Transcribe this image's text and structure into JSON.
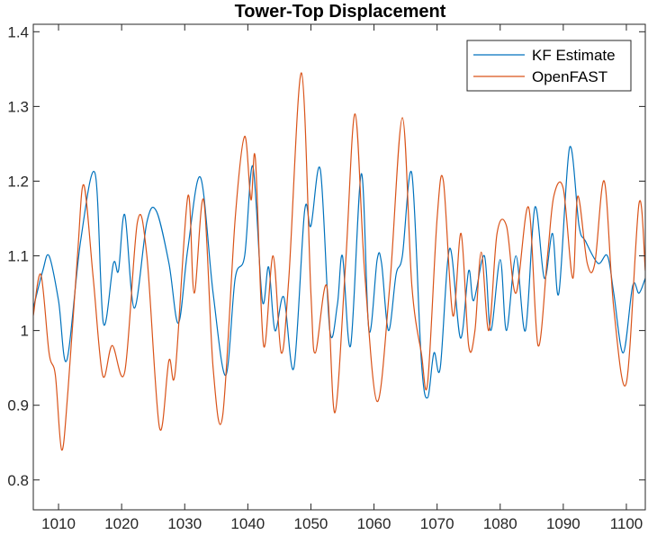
{
  "chart_data": {
    "type": "line",
    "title": "Tower-Top Displacement",
    "xlabel": "",
    "ylabel": "",
    "xlim": [
      1006,
      1103
    ],
    "ylim": [
      0.76,
      1.41
    ],
    "xticks": [
      1010,
      1020,
      1030,
      1040,
      1050,
      1060,
      1070,
      1080,
      1090,
      1100
    ],
    "yticks": [
      0.8,
      0.9,
      1,
      1.1,
      1.2,
      1.3,
      1.4
    ],
    "ytick_labels": [
      "0.8",
      "0.9",
      "1",
      "1.1",
      "1.2",
      "1.3",
      "1.4"
    ],
    "grid": false,
    "legend_position": "top-right",
    "series": [
      {
        "name": "KF Estimate",
        "color": "#0072BD",
        "points": [
          [
            1006,
            1.03
          ],
          [
            1007.5,
            1.08
          ],
          [
            1008.5,
            1.1
          ],
          [
            1010,
            1.04
          ],
          [
            1011.3,
            0.96
          ],
          [
            1013.5,
            1.12
          ],
          [
            1015.8,
            1.21
          ],
          [
            1017.1,
            1.01
          ],
          [
            1018.7,
            1.09
          ],
          [
            1019.5,
            1.08
          ],
          [
            1020.5,
            1.155
          ],
          [
            1022,
            1.03
          ],
          [
            1024,
            1.145
          ],
          [
            1025.5,
            1.16
          ],
          [
            1027.5,
            1.09
          ],
          [
            1029,
            1.01
          ],
          [
            1030.5,
            1.11
          ],
          [
            1032.5,
            1.205
          ],
          [
            1034.5,
            1.05
          ],
          [
            1036.5,
            0.94
          ],
          [
            1038,
            1.07
          ],
          [
            1039.5,
            1.1
          ],
          [
            1040.8,
            1.22
          ],
          [
            1042.3,
            1.04
          ],
          [
            1043.3,
            1.085
          ],
          [
            1044.3,
            1.0
          ],
          [
            1045.7,
            1.045
          ],
          [
            1047.3,
            0.95
          ],
          [
            1049,
            1.16
          ],
          [
            1050,
            1.14
          ],
          [
            1051.5,
            1.215
          ],
          [
            1053,
            1.0
          ],
          [
            1054.2,
            1.035
          ],
          [
            1055,
            1.1
          ],
          [
            1056.3,
            0.98
          ],
          [
            1058,
            1.21
          ],
          [
            1059.2,
            1.0
          ],
          [
            1060.5,
            1.095
          ],
          [
            1061.2,
            1.09
          ],
          [
            1062.3,
            1.0
          ],
          [
            1063.5,
            1.075
          ],
          [
            1064.5,
            1.1
          ],
          [
            1066,
            1.21
          ],
          [
            1067.5,
            0.96
          ],
          [
            1068.5,
            0.91
          ],
          [
            1069.5,
            0.97
          ],
          [
            1070.5,
            0.95
          ],
          [
            1072,
            1.11
          ],
          [
            1073.7,
            0.99
          ],
          [
            1075,
            1.08
          ],
          [
            1075.8,
            1.04
          ],
          [
            1077.5,
            1.1
          ],
          [
            1078.5,
            1.0
          ],
          [
            1080,
            1.095
          ],
          [
            1081,
            1.0
          ],
          [
            1082.5,
            1.1
          ],
          [
            1084,
            1.0
          ],
          [
            1085.5,
            1.165
          ],
          [
            1087,
            1.07
          ],
          [
            1088.3,
            1.13
          ],
          [
            1089.3,
            1.05
          ],
          [
            1091,
            1.245
          ],
          [
            1092.5,
            1.14
          ],
          [
            1093.5,
            1.12
          ],
          [
            1095.5,
            1.09
          ],
          [
            1097,
            1.1
          ],
          [
            1098,
            1.05
          ],
          [
            1099.5,
            0.97
          ],
          [
            1101,
            1.06
          ],
          [
            1102,
            1.05
          ],
          [
            1103,
            1.07
          ]
        ]
      },
      {
        "name": "OpenFAST",
        "color": "#D95319",
        "points": [
          [
            1006,
            1.02
          ],
          [
            1007.2,
            1.075
          ],
          [
            1008.5,
            0.97
          ],
          [
            1009.5,
            0.94
          ],
          [
            1010.5,
            0.84
          ],
          [
            1011.5,
            0.92
          ],
          [
            1013,
            1.1
          ],
          [
            1014,
            1.195
          ],
          [
            1015.5,
            1.07
          ],
          [
            1017,
            0.94
          ],
          [
            1018.5,
            0.98
          ],
          [
            1020.5,
            0.945
          ],
          [
            1022.5,
            1.145
          ],
          [
            1024,
            1.1
          ],
          [
            1026,
            0.87
          ],
          [
            1027.5,
            0.96
          ],
          [
            1028.5,
            0.945
          ],
          [
            1030.5,
            1.18
          ],
          [
            1031.5,
            1.05
          ],
          [
            1033,
            1.175
          ],
          [
            1034.5,
            0.95
          ],
          [
            1036,
            0.885
          ],
          [
            1038,
            1.15
          ],
          [
            1039.5,
            1.26
          ],
          [
            1040.5,
            1.175
          ],
          [
            1041.2,
            1.23
          ],
          [
            1042.5,
            0.98
          ],
          [
            1044,
            1.1
          ],
          [
            1045.3,
            0.97
          ],
          [
            1046.5,
            1.07
          ],
          [
            1048.5,
            1.345
          ],
          [
            1050,
            1.05
          ],
          [
            1050.7,
            0.97
          ],
          [
            1052.5,
            1.06
          ],
          [
            1053.8,
            0.89
          ],
          [
            1055.5,
            1.09
          ],
          [
            1057,
            1.29
          ],
          [
            1058.5,
            1.08
          ],
          [
            1060.5,
            0.905
          ],
          [
            1062.5,
            1.06
          ],
          [
            1064.5,
            1.285
          ],
          [
            1066,
            1.06
          ],
          [
            1067.5,
            0.97
          ],
          [
            1068.5,
            0.93
          ],
          [
            1070,
            1.15
          ],
          [
            1071,
            1.2
          ],
          [
            1072.5,
            1.02
          ],
          [
            1073.8,
            1.13
          ],
          [
            1075,
            0.98
          ],
          [
            1076,
            1.0
          ],
          [
            1077,
            1.105
          ],
          [
            1078.2,
            1.0
          ],
          [
            1079.5,
            1.13
          ],
          [
            1081,
            1.14
          ],
          [
            1082.5,
            1.05
          ],
          [
            1084.5,
            1.165
          ],
          [
            1086,
            0.98
          ],
          [
            1087.5,
            1.1
          ],
          [
            1088.5,
            1.18
          ],
          [
            1090,
            1.19
          ],
          [
            1091.5,
            1.07
          ],
          [
            1092.3,
            1.18
          ],
          [
            1093.8,
            1.09
          ],
          [
            1095,
            1.09
          ],
          [
            1096.5,
            1.2
          ],
          [
            1098,
            1.03
          ],
          [
            1100,
            0.93
          ],
          [
            1102,
            1.17
          ],
          [
            1103,
            1.08
          ]
        ]
      }
    ]
  }
}
